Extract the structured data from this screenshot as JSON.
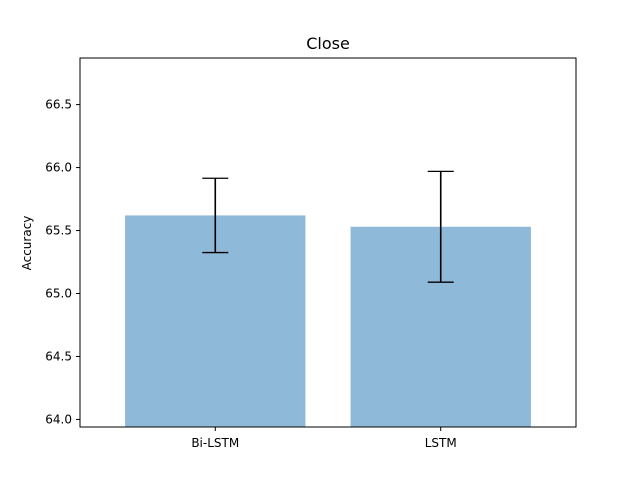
{
  "chart_data": {
    "type": "bar",
    "title": "Close",
    "xlabel": "",
    "ylabel": "Accuracy",
    "categories": [
      "Bi-LSTM",
      "LSTM"
    ],
    "values": [
      65.62,
      65.53
    ],
    "errors": [
      0.295,
      0.44
    ],
    "ylim": [
      63.94,
      66.87
    ],
    "yticks": [
      64.0,
      64.5,
      65.0,
      65.5,
      66.0,
      66.5
    ],
    "ytick_labels": [
      "64.0",
      "64.5",
      "65.0",
      "65.5",
      "66.0",
      "66.5"
    ],
    "grid": false,
    "legend": "none",
    "bar_color": "#8fb9d9",
    "error_color": "#000000"
  }
}
